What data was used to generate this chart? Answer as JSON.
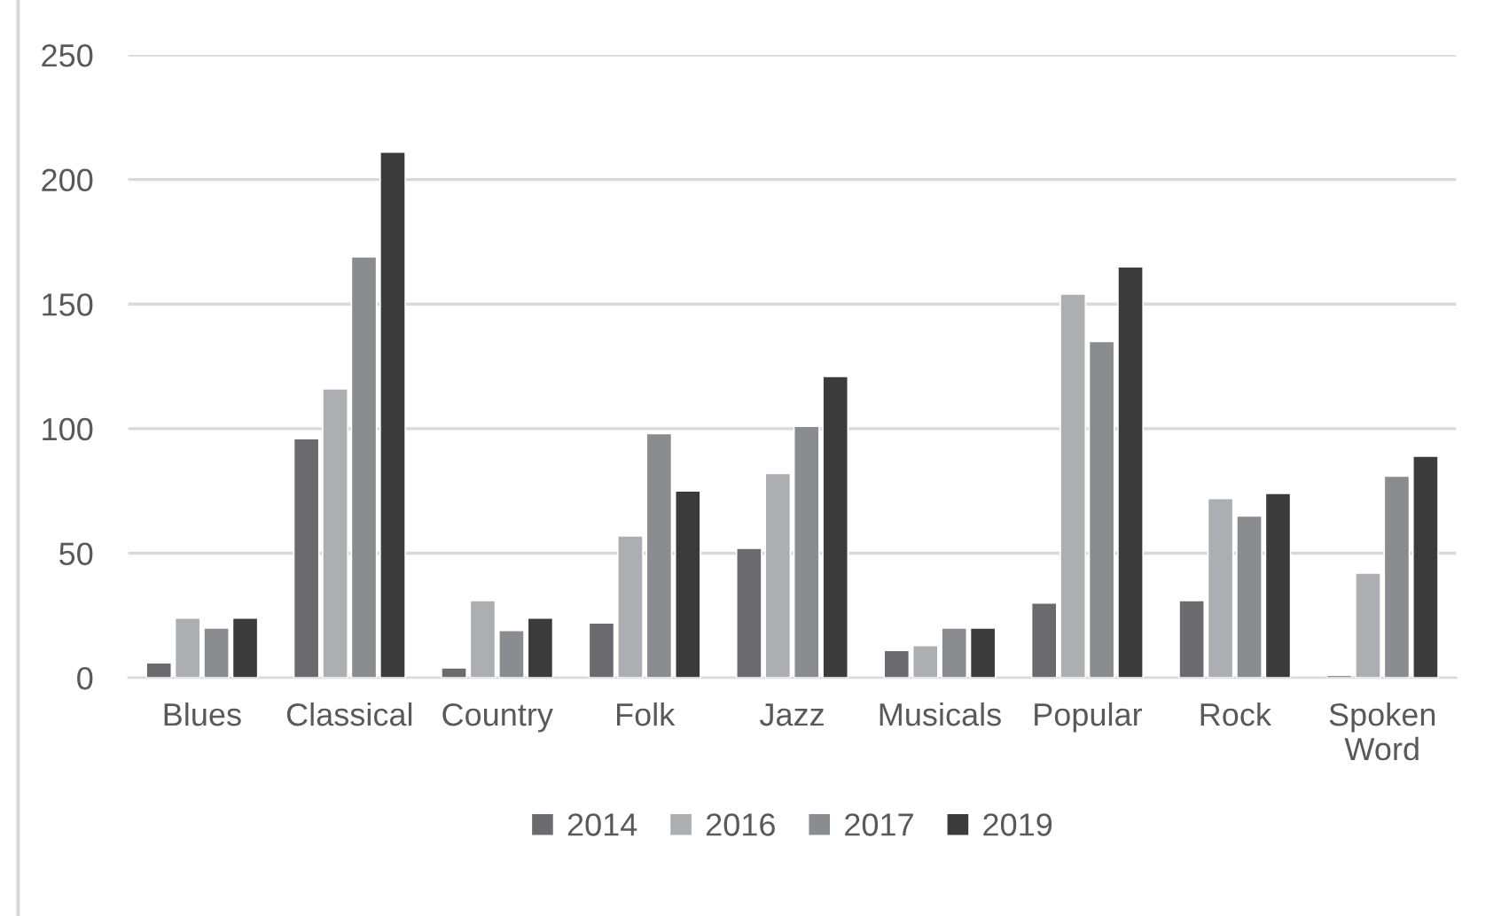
{
  "chart_data": {
    "type": "bar",
    "categories": [
      "Blues",
      "Classical",
      "Country",
      "Folk",
      "Jazz",
      "Musicals",
      "Popular",
      "Rock",
      "Spoken\nWord"
    ],
    "series": [
      {
        "name": "2014",
        "color": "#6b6b6f",
        "values": [
          6,
          96,
          4,
          22,
          52,
          11,
          30,
          31,
          1
        ]
      },
      {
        "name": "2016",
        "color": "#adaeb1",
        "values": [
          24,
          116,
          31,
          57,
          82,
          13,
          154,
          72,
          42
        ]
      },
      {
        "name": "2017",
        "color": "#8b8c90",
        "values": [
          20,
          169,
          19,
          98,
          101,
          20,
          135,
          65,
          81
        ]
      },
      {
        "name": "2019",
        "color": "#3b3b3b",
        "values": [
          24,
          211,
          24,
          75,
          121,
          20,
          165,
          74,
          89
        ]
      }
    ],
    "ylim": [
      0,
      250
    ],
    "yticks": [
      0,
      50,
      100,
      150,
      200,
      250
    ],
    "grid": "y",
    "legend": "bottom"
  }
}
